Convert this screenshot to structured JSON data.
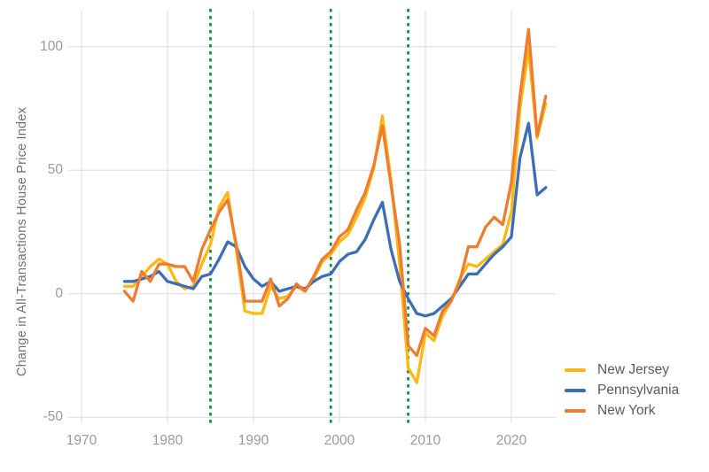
{
  "figure": {
    "y_axis_title": "Change in All-Transactions House Price Index"
  },
  "legend": {
    "items": [
      {
        "label": "New Jersey",
        "color": "#FDB813"
      },
      {
        "label": "Pennsylvania",
        "color": "#3D6EB5"
      },
      {
        "label": "New York",
        "color": "#ED7D31"
      }
    ]
  },
  "chart_data": {
    "type": "line",
    "title": "",
    "xlabel": "",
    "ylabel": "Change in All-Transactions House Price Index",
    "grid": true,
    "legend_position": "right-bottom",
    "x_ticks": [
      1970,
      1980,
      1990,
      2000,
      2010,
      2020
    ],
    "y_ticks": [
      -50,
      0,
      50,
      100
    ],
    "ylim": [
      -55,
      112
    ],
    "xlim": [
      1968.5,
      2026
    ],
    "x": [
      1975,
      1976,
      1977,
      1978,
      1979,
      1980,
      1981,
      1982,
      1983,
      1984,
      1985,
      1986,
      1987,
      1988,
      1989,
      1990,
      1991,
      1992,
      1993,
      1994,
      1995,
      1996,
      1997,
      1998,
      1999,
      2000,
      2001,
      2002,
      2003,
      2004,
      2005,
      2006,
      2007,
      2008,
      2009,
      2010,
      2011,
      2012,
      2013,
      2014,
      2015,
      2016,
      2017,
      2018,
      2019,
      2020,
      2021,
      2022,
      2023,
      2024
    ],
    "series": [
      {
        "name": "New Jersey",
        "color": "#FDB813",
        "values": [
          3,
          3,
          7,
          11,
          14,
          12,
          5,
          2,
          3,
          12,
          20,
          35,
          41,
          18,
          -7,
          -8,
          -8,
          3,
          -2,
          -1,
          3,
          1,
          6,
          13,
          16,
          21,
          24,
          31,
          39,
          51,
          72,
          46,
          12,
          -30,
          -36,
          -16,
          -19,
          -9,
          -3,
          6,
          12,
          11,
          14,
          17,
          20,
          33,
          75,
          99,
          63,
          77
        ]
      },
      {
        "name": "Pennsylvania",
        "color": "#3D6EB5",
        "values": [
          5,
          5,
          6,
          7,
          9,
          5,
          4,
          3,
          2,
          7,
          8,
          14,
          21,
          19,
          11,
          6,
          3,
          5,
          1,
          2,
          3,
          2,
          5,
          7,
          8,
          13,
          16,
          17,
          22,
          30,
          37,
          18,
          5,
          -2,
          -8,
          -9,
          -8,
          -5,
          -2,
          3,
          8,
          8,
          12,
          16,
          19,
          23,
          55,
          69,
          40,
          43
        ]
      },
      {
        "name": "New York",
        "color": "#ED7D31",
        "values": [
          1,
          -3,
          9,
          5,
          12,
          12,
          11,
          11,
          5,
          18,
          26,
          33,
          38,
          20,
          -3,
          -3,
          -3,
          6,
          -5,
          -2,
          4,
          1,
          7,
          14,
          17,
          23,
          26,
          34,
          41,
          52,
          68,
          44,
          20,
          -21,
          -25,
          -14,
          -17,
          -7,
          -3,
          5,
          19,
          19,
          27,
          31,
          28,
          45,
          80,
          107,
          64,
          80
        ]
      }
    ],
    "vlines": {
      "x": [
        1985,
        1999,
        2008
      ],
      "color": "#128A40",
      "style": "dashed"
    },
    "gridline_color": "#dcdcdc"
  }
}
